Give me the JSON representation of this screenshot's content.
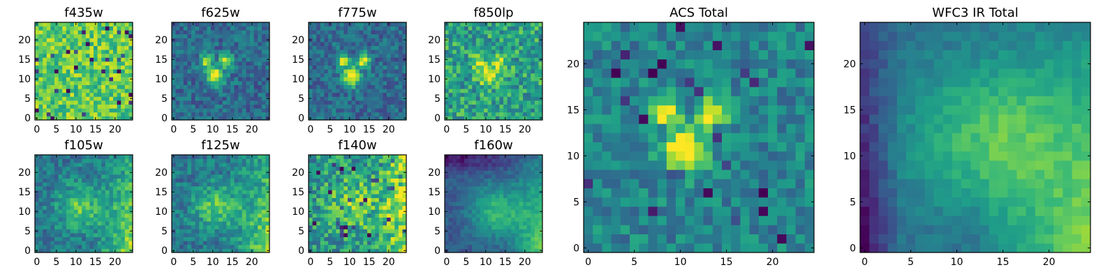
{
  "chart_data": [
    {
      "type": "heatmap",
      "title": "f435w",
      "x_ticks": [
        "0",
        "5",
        "10",
        "15",
        "20"
      ],
      "y_ticks": [
        "0",
        "5",
        "10",
        "15",
        "20"
      ],
      "grid_size": 25,
      "xlim": [
        0,
        24
      ],
      "ylim": [
        0,
        24
      ],
      "colormap": "viridis",
      "intensity": "noise_high"
    },
    {
      "type": "heatmap",
      "title": "f625w",
      "x_ticks": [
        "0",
        "5",
        "10",
        "15",
        "20"
      ],
      "y_ticks": [
        "0",
        "5",
        "10",
        "15",
        "20"
      ],
      "grid_size": 25,
      "xlim": [
        0,
        24
      ],
      "ylim": [
        0,
        24
      ],
      "colormap": "viridis",
      "intensity": "central_source"
    },
    {
      "type": "heatmap",
      "title": "f775w",
      "x_ticks": [
        "0",
        "5",
        "10",
        "15",
        "20"
      ],
      "y_ticks": [
        "0",
        "5",
        "10",
        "15",
        "20"
      ],
      "grid_size": 25,
      "xlim": [
        0,
        24
      ],
      "ylim": [
        0,
        24
      ],
      "colormap": "viridis",
      "intensity": "central_source"
    },
    {
      "type": "heatmap",
      "title": "f850lp",
      "x_ticks": [
        "0",
        "5",
        "10",
        "15",
        "20"
      ],
      "y_ticks": [
        "0",
        "5",
        "10",
        "15",
        "20"
      ],
      "grid_size": 25,
      "xlim": [
        0,
        24
      ],
      "ylim": [
        0,
        24
      ],
      "colormap": "viridis",
      "intensity": "central_source_noisy"
    },
    {
      "type": "heatmap",
      "title": "f105w",
      "x_ticks": [
        "0",
        "5",
        "10",
        "15",
        "20"
      ],
      "y_ticks": [
        "0",
        "5",
        "10",
        "15",
        "20"
      ],
      "grid_size": 25,
      "xlim": [
        0,
        24
      ],
      "ylim": [
        0,
        24
      ],
      "colormap": "viridis",
      "intensity": "ir_gradient"
    },
    {
      "type": "heatmap",
      "title": "f125w",
      "x_ticks": [
        "0",
        "5",
        "10",
        "15",
        "20"
      ],
      "y_ticks": [
        "0",
        "5",
        "10",
        "15",
        "20"
      ],
      "grid_size": 25,
      "xlim": [
        0,
        24
      ],
      "ylim": [
        0,
        24
      ],
      "colormap": "viridis",
      "intensity": "ir_gradient"
    },
    {
      "type": "heatmap",
      "title": "f140w",
      "x_ticks": [
        "0",
        "5",
        "10",
        "15",
        "20"
      ],
      "y_ticks": [
        "0",
        "5",
        "10",
        "15",
        "20"
      ],
      "grid_size": 25,
      "xlim": [
        0,
        24
      ],
      "ylim": [
        0,
        24
      ],
      "colormap": "viridis",
      "intensity": "ir_gradient_noisy"
    },
    {
      "type": "heatmap",
      "title": "f160w",
      "x_ticks": [
        "0",
        "5",
        "10",
        "15",
        "20"
      ],
      "y_ticks": [
        "0",
        "5",
        "10",
        "15",
        "20"
      ],
      "grid_size": 25,
      "xlim": [
        0,
        24
      ],
      "ylim": [
        0,
        24
      ],
      "colormap": "viridis",
      "intensity": "ir_smooth"
    },
    {
      "type": "heatmap",
      "title": "ACS Total",
      "x_ticks": [
        "0",
        "5",
        "10",
        "15",
        "20"
      ],
      "y_ticks": [
        "0",
        "5",
        "10",
        "15",
        "20"
      ],
      "grid_size": 25,
      "xlim": [
        0,
        24
      ],
      "ylim": [
        0,
        24
      ],
      "colormap": "viridis",
      "intensity": "acs_total"
    },
    {
      "type": "heatmap",
      "title": "WFC3 IR Total",
      "x_ticks": [
        "0",
        "5",
        "10",
        "15",
        "20"
      ],
      "y_ticks": [
        "0",
        "5",
        "10",
        "15",
        "20"
      ],
      "grid_size": 25,
      "xlim": [
        0,
        24
      ],
      "ylim": [
        0,
        24
      ],
      "colormap": "viridis",
      "intensity": "wfc3_total"
    }
  ]
}
